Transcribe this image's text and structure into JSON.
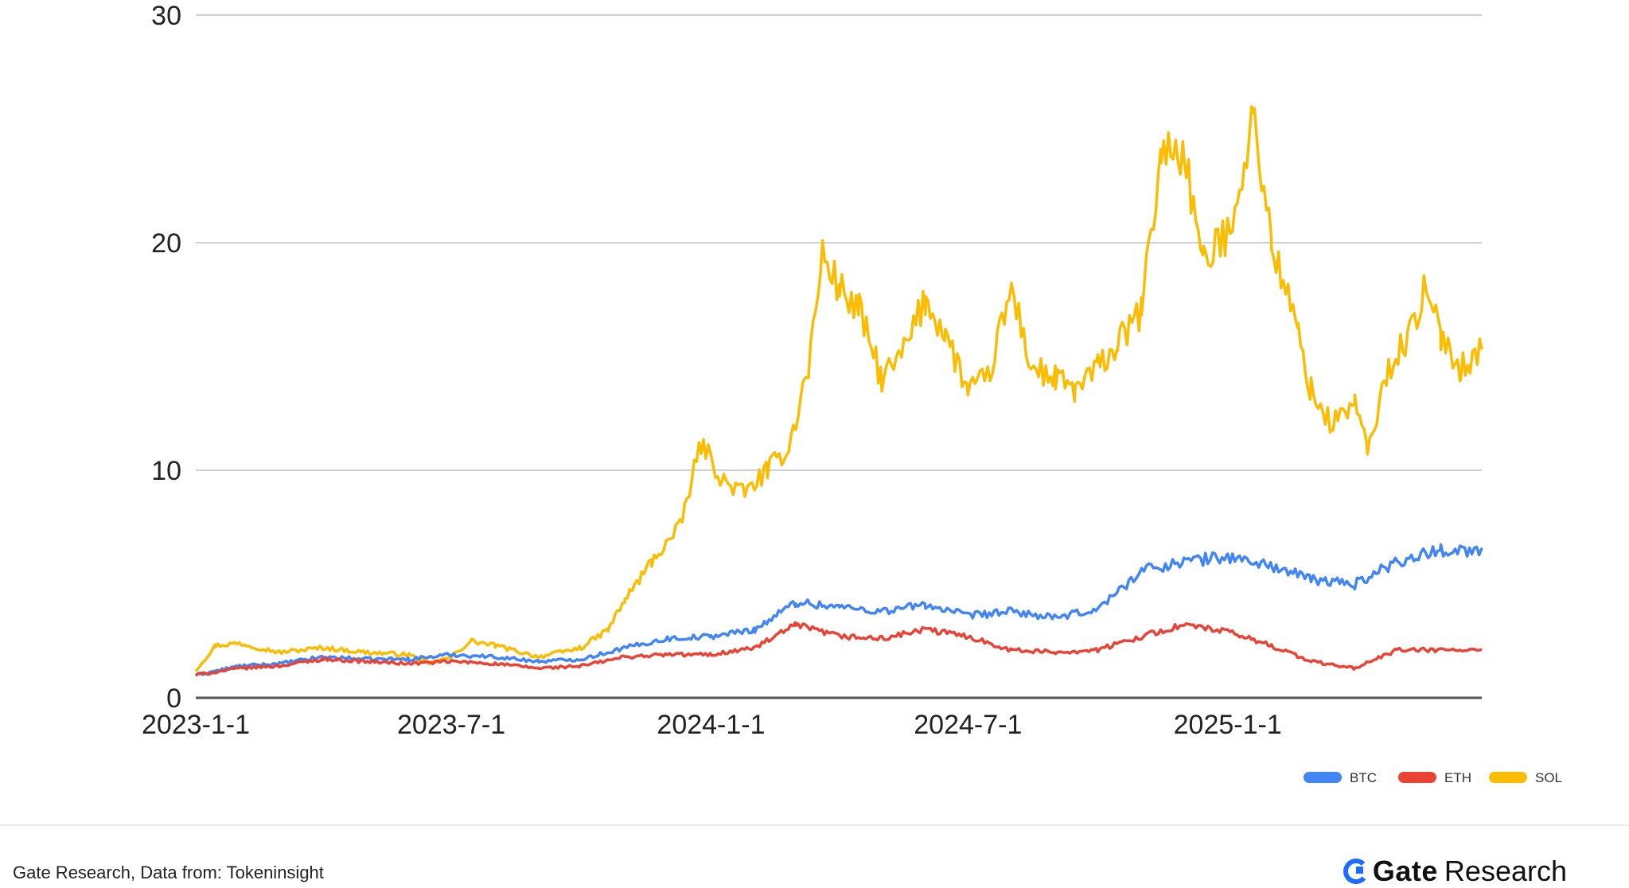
{
  "chart_data": {
    "type": "line",
    "title": "",
    "xlabel": "",
    "ylabel": "",
    "ylim": [
      0,
      30
    ],
    "y_ticks": [
      "0",
      "10",
      "20",
      "30"
    ],
    "x_ticks": [
      "2023-1-1",
      "2023-7-1",
      "2024-1-1",
      "2024-7-1",
      "2025-1-1"
    ],
    "x_range": [
      "2023-01-01",
      "2025-06-30"
    ],
    "grid": true,
    "legend_position": "bottom-right",
    "series": [
      {
        "name": "BTC",
        "color": "#4285f4",
        "points": [
          [
            "2023-01-01",
            1.0
          ],
          [
            "2023-02-01",
            1.4
          ],
          [
            "2023-03-01",
            1.5
          ],
          [
            "2023-04-01",
            1.8
          ],
          [
            "2023-05-01",
            1.7
          ],
          [
            "2023-06-01",
            1.7
          ],
          [
            "2023-07-01",
            1.9
          ],
          [
            "2023-08-01",
            1.8
          ],
          [
            "2023-09-01",
            1.6
          ],
          [
            "2023-10-01",
            1.7
          ],
          [
            "2023-11-01",
            2.2
          ],
          [
            "2023-12-01",
            2.6
          ],
          [
            "2024-01-01",
            2.7
          ],
          [
            "2024-02-01",
            3.0
          ],
          [
            "2024-03-01",
            4.2
          ],
          [
            "2024-04-01",
            4.0
          ],
          [
            "2024-05-01",
            3.8
          ],
          [
            "2024-06-01",
            4.1
          ],
          [
            "2024-07-01",
            3.6
          ],
          [
            "2024-08-01",
            3.8
          ],
          [
            "2024-09-01",
            3.5
          ],
          [
            "2024-10-01",
            3.9
          ],
          [
            "2024-11-01",
            5.6
          ],
          [
            "2024-12-01",
            6.0
          ],
          [
            "2025-01-01",
            6.2
          ],
          [
            "2025-02-01",
            5.8
          ],
          [
            "2025-03-01",
            5.2
          ],
          [
            "2025-04-01",
            5.0
          ],
          [
            "2025-05-01",
            6.0
          ],
          [
            "2025-06-01",
            6.5
          ],
          [
            "2025-06-30",
            6.5
          ]
        ]
      },
      {
        "name": "ETH",
        "color": "#ea4335",
        "points": [
          [
            "2023-01-01",
            1.0
          ],
          [
            "2023-02-01",
            1.3
          ],
          [
            "2023-03-01",
            1.4
          ],
          [
            "2023-04-01",
            1.7
          ],
          [
            "2023-05-01",
            1.6
          ],
          [
            "2023-06-01",
            1.5
          ],
          [
            "2023-07-01",
            1.6
          ],
          [
            "2023-08-01",
            1.5
          ],
          [
            "2023-09-01",
            1.3
          ],
          [
            "2023-10-01",
            1.4
          ],
          [
            "2023-11-01",
            1.8
          ],
          [
            "2023-12-01",
            1.9
          ],
          [
            "2024-01-01",
            1.9
          ],
          [
            "2024-02-01",
            2.2
          ],
          [
            "2024-03-01",
            3.2
          ],
          [
            "2024-04-01",
            2.7
          ],
          [
            "2024-05-01",
            2.6
          ],
          [
            "2024-06-01",
            3.0
          ],
          [
            "2024-07-01",
            2.7
          ],
          [
            "2024-08-01",
            2.1
          ],
          [
            "2024-09-01",
            2.0
          ],
          [
            "2024-10-01",
            2.1
          ],
          [
            "2024-11-01",
            2.7
          ],
          [
            "2024-12-01",
            3.2
          ],
          [
            "2025-01-01",
            2.9
          ],
          [
            "2025-02-01",
            2.3
          ],
          [
            "2025-03-01",
            1.6
          ],
          [
            "2025-04-01",
            1.3
          ],
          [
            "2025-05-01",
            2.1
          ],
          [
            "2025-06-01",
            2.1
          ],
          [
            "2025-06-30",
            2.1
          ]
        ]
      },
      {
        "name": "SOL",
        "color": "#fbbc04",
        "points": [
          [
            "2023-01-01",
            1.2
          ],
          [
            "2023-01-15",
            2.3
          ],
          [
            "2023-02-01",
            2.4
          ],
          [
            "2023-03-01",
            2.0
          ],
          [
            "2023-04-01",
            2.2
          ],
          [
            "2023-05-01",
            2.0
          ],
          [
            "2023-06-01",
            1.9
          ],
          [
            "2023-06-15",
            1.5
          ],
          [
            "2023-07-01",
            1.8
          ],
          [
            "2023-07-15",
            2.5
          ],
          [
            "2023-08-01",
            2.3
          ],
          [
            "2023-09-01",
            1.8
          ],
          [
            "2023-10-01",
            2.2
          ],
          [
            "2023-10-20",
            3.0
          ],
          [
            "2023-11-01",
            4.3
          ],
          [
            "2023-11-20",
            6.0
          ],
          [
            "2023-12-10",
            7.5
          ],
          [
            "2023-12-25",
            11.2
          ],
          [
            "2024-01-10",
            9.5
          ],
          [
            "2024-01-25",
            9.0
          ],
          [
            "2024-02-10",
            10.0
          ],
          [
            "2024-02-25",
            11.0
          ],
          [
            "2024-03-10",
            14.5
          ],
          [
            "2024-03-20",
            19.5
          ],
          [
            "2024-04-01",
            18.0
          ],
          [
            "2024-04-15",
            17.0
          ],
          [
            "2024-05-01",
            14.0
          ],
          [
            "2024-05-15",
            15.0
          ],
          [
            "2024-06-01",
            17.5
          ],
          [
            "2024-06-15",
            16.0
          ],
          [
            "2024-07-01",
            13.5
          ],
          [
            "2024-07-15",
            14.0
          ],
          [
            "2024-08-01",
            18.0
          ],
          [
            "2024-08-15",
            14.5
          ],
          [
            "2024-09-01",
            14.0
          ],
          [
            "2024-09-15",
            13.5
          ],
          [
            "2024-10-01",
            14.5
          ],
          [
            "2024-10-15",
            15.5
          ],
          [
            "2024-11-01",
            17.0
          ],
          [
            "2024-11-15",
            24.0
          ],
          [
            "2024-12-01",
            24.0
          ],
          [
            "2024-12-15",
            19.0
          ],
          [
            "2025-01-01",
            20.5
          ],
          [
            "2025-01-20",
            25.5
          ],
          [
            "2025-02-01",
            20.0
          ],
          [
            "2025-02-20",
            16.0
          ],
          [
            "2025-03-01",
            13.5
          ],
          [
            "2025-03-15",
            12.0
          ],
          [
            "2025-04-01",
            13.0
          ],
          [
            "2025-04-10",
            10.8
          ],
          [
            "2025-04-25",
            14.5
          ],
          [
            "2025-05-10",
            16.0
          ],
          [
            "2025-05-20",
            17.8
          ],
          [
            "2025-06-01",
            16.0
          ],
          [
            "2025-06-15",
            14.5
          ],
          [
            "2025-06-30",
            15.3
          ]
        ]
      }
    ]
  },
  "footer": {
    "source_note": "Gate Research, Data from: Tokeninsight",
    "brand_name": "Gate",
    "brand_suffix": "Research"
  }
}
